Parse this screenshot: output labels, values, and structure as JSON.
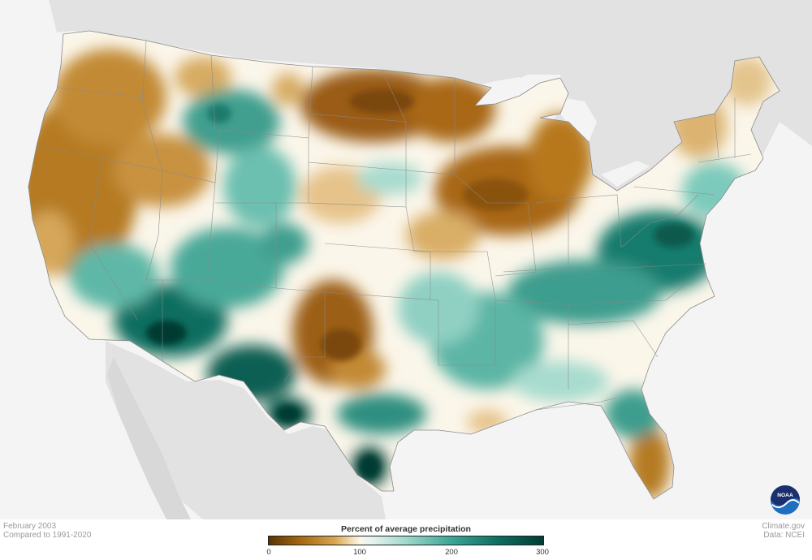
{
  "legend": {
    "title": "Percent of average precipitation",
    "ticks": [
      "0",
      "100",
      "200",
      "300"
    ],
    "colors": [
      "#5a3305",
      "#a8690f",
      "#d9a54f",
      "#f3ddb0",
      "#fbf6ea",
      "#e4f3ef",
      "#9fd9cc",
      "#3aa596",
      "#0e6f62",
      "#013d33"
    ]
  },
  "caption": {
    "date": "February 2003",
    "baseline": "Compared to 1991-2020"
  },
  "credit": {
    "site": "Climate.gov",
    "source": "Data: NCEI"
  },
  "logo": {
    "text": "NOAA"
  },
  "map": {
    "land_color": "#e2e2e2",
    "background_color": "#f4f4f4",
    "neutral_color": "#fbf6ea"
  }
}
